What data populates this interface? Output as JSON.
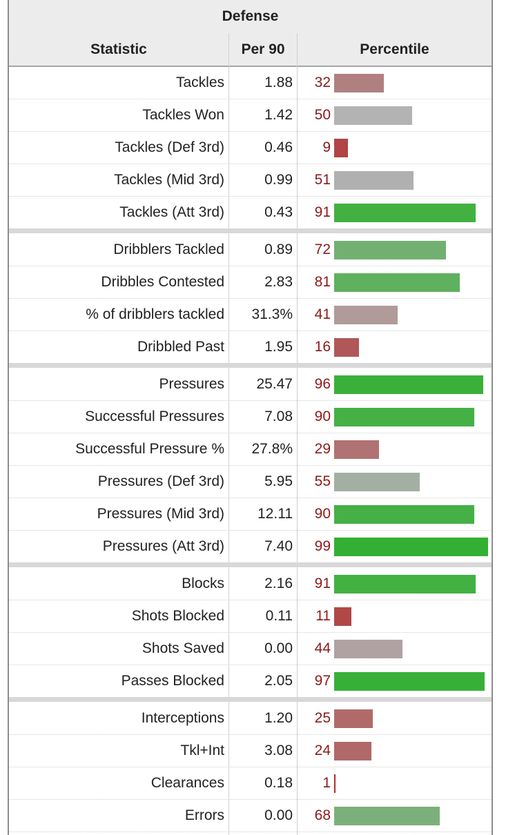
{
  "title": "Defense",
  "headers": {
    "statistic": "Statistic",
    "per90": "Per 90",
    "percentile": "Percentile"
  },
  "groups": [
    [
      {
        "stat": "Tackles",
        "per90": "1.88",
        "pct": 32,
        "color": "#b08080"
      },
      {
        "stat": "Tackles Won",
        "per90": "1.42",
        "pct": 50,
        "color": "#b3b3b3"
      },
      {
        "stat": "Tackles (Def 3rd)",
        "per90": "0.46",
        "pct": 9,
        "color": "#b14444"
      },
      {
        "stat": "Tackles (Mid 3rd)",
        "per90": "0.99",
        "pct": 51,
        "color": "#b0b0b0"
      },
      {
        "stat": "Tackles (Att 3rd)",
        "per90": "0.43",
        "pct": 91,
        "color": "#42b142"
      }
    ],
    [
      {
        "stat": "Dribblers Tackled",
        "per90": "0.89",
        "pct": 72,
        "color": "#72b072"
      },
      {
        "stat": "Dribbles Contested",
        "per90": "2.83",
        "pct": 81,
        "color": "#5fb05f"
      },
      {
        "stat": "% of dribblers tackled",
        "per90": "31.3%",
        "pct": 41,
        "color": "#b09a9a"
      },
      {
        "stat": "Dribbled Past",
        "per90": "1.95",
        "pct": 16,
        "color": "#b05858"
      }
    ],
    [
      {
        "stat": "Pressures",
        "per90": "25.47",
        "pct": 96,
        "color": "#3ab03a"
      },
      {
        "stat": "Successful Pressures",
        "per90": "7.08",
        "pct": 90,
        "color": "#45b045"
      },
      {
        "stat": "Successful Pressure %",
        "per90": "27.8%",
        "pct": 29,
        "color": "#b07272"
      },
      {
        "stat": "Pressures (Def 3rd)",
        "per90": "5.95",
        "pct": 55,
        "color": "#a3afa3"
      },
      {
        "stat": "Pressures (Mid 3rd)",
        "per90": "12.11",
        "pct": 90,
        "color": "#45b045"
      },
      {
        "stat": "Pressures (Att 3rd)",
        "per90": "7.40",
        "pct": 99,
        "color": "#33b033"
      }
    ],
    [
      {
        "stat": "Blocks",
        "per90": "2.16",
        "pct": 91,
        "color": "#42b142"
      },
      {
        "stat": "Shots Blocked",
        "per90": "0.11",
        "pct": 11,
        "color": "#b04848"
      },
      {
        "stat": "Shots Saved",
        "per90": "0.00",
        "pct": 44,
        "color": "#b0a2a2"
      },
      {
        "stat": "Passes Blocked",
        "per90": "2.05",
        "pct": 97,
        "color": "#38b038"
      }
    ],
    [
      {
        "stat": "Interceptions",
        "per90": "1.20",
        "pct": 25,
        "color": "#b06a6a"
      },
      {
        "stat": "Tkl+Int",
        "per90": "3.08",
        "pct": 24,
        "color": "#b06868"
      },
      {
        "stat": "Clearances",
        "per90": "0.18",
        "pct": 1,
        "color": "#b02c2c"
      },
      {
        "stat": "Errors",
        "per90": "0.00",
        "pct": 68,
        "color": "#7bb07b"
      }
    ]
  ]
}
